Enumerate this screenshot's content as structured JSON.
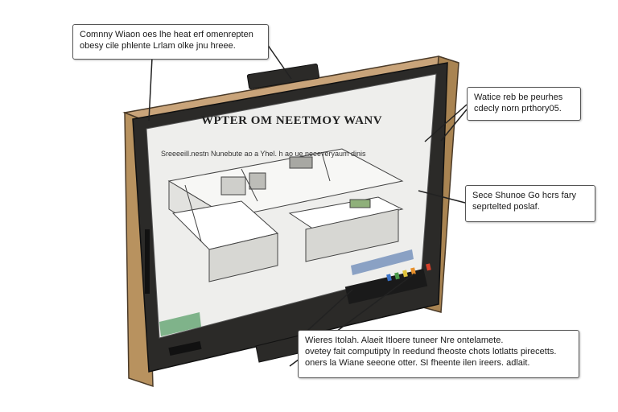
{
  "monitor": {
    "screen_title": "WPTER OM NEETMOY WANV",
    "screen_caption": "Sreeeeill.nestn Nunebute ao a Yhel. h ao ue neeeveryaum dinis"
  },
  "callouts": [
    {
      "lines": [
        "Comnny Wiaon oes lhe heat erf omenrepten",
        "obesy cile phlente Lrlam olke jnu hreee."
      ]
    },
    {
      "lines": [
        "Watice reb be peurhes",
        "cdecly norn prthory05."
      ]
    },
    {
      "lines": [
        "Sece Shunoe Go hcrs fary",
        "seprtelted poslaf."
      ]
    },
    {
      "lines": [
        "Wieres Itolah. Alaeit Itloere tuneer Nre ontelamete.",
        "ovetey fait computipty ln reedund fheoste chots lotlatts pirecetts.",
        "oners la Wiane seeone otter. SI fheente ilen ireers. adlait."
      ]
    }
  ],
  "colors": {
    "bezel": "#2b2a28",
    "wood": "#c9a47a",
    "screen": "#eeeeec",
    "leader": "#222222",
    "green_bar": "#7fb38a",
    "blue_bar": "#8aa1c4",
    "indicator_red": "#d8402a",
    "indicator_orange": "#e8902a",
    "indicator_yellow": "#e0c23a",
    "indicator_green": "#4a9a4a",
    "indicator_blue": "#3a72c8"
  }
}
